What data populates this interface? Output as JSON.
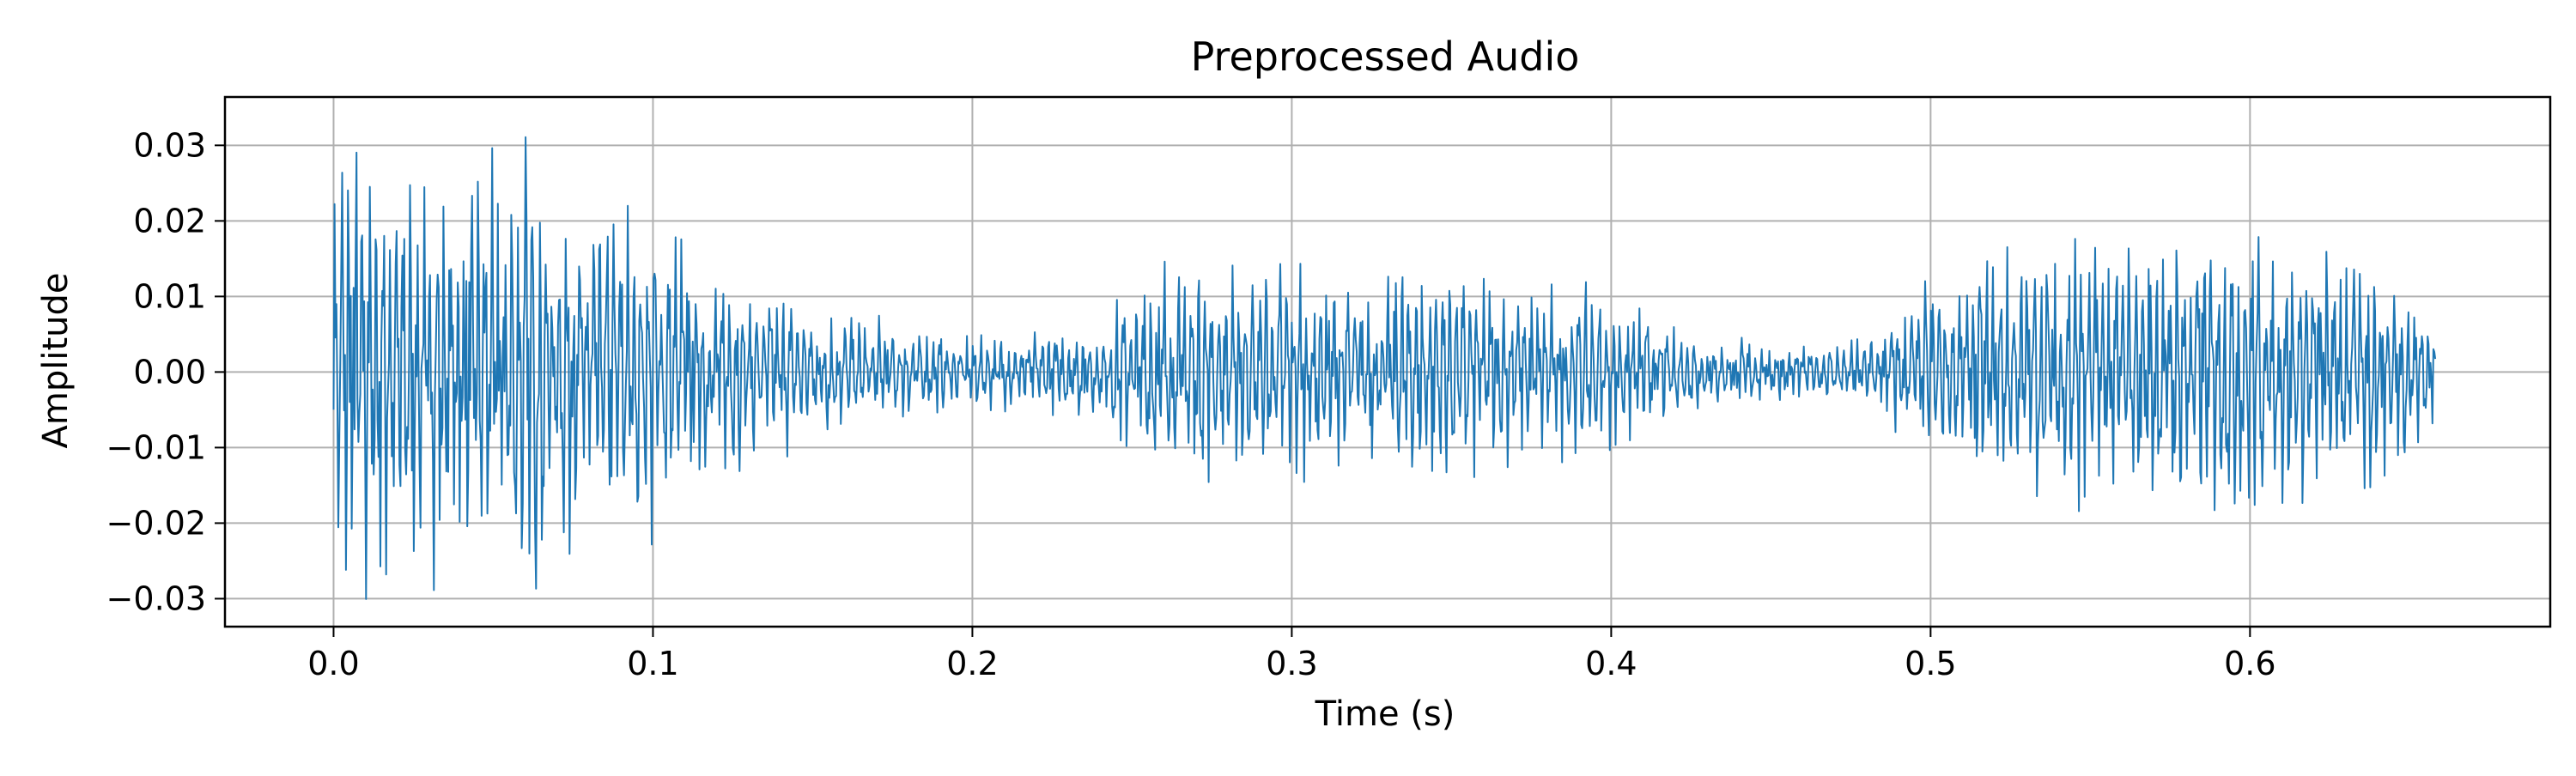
{
  "chart_data": {
    "type": "line",
    "title": "Preprocessed Audio",
    "xlabel": "Time (s)",
    "ylabel": "Amplitude",
    "xlim": [
      -0.034,
      0.694
    ],
    "ylim": [
      -0.0337,
      0.0364
    ],
    "xticks": [
      0.0,
      0.1,
      0.2,
      0.3,
      0.4,
      0.5,
      0.6
    ],
    "xtick_labels": [
      "0.0",
      "0.1",
      "0.2",
      "0.3",
      "0.4",
      "0.5",
      "0.6"
    ],
    "yticks": [
      0.03,
      0.02,
      0.01,
      0.0,
      -0.01,
      -0.02,
      -0.03
    ],
    "ytick_labels": [
      "0.03",
      "0.02",
      "0.01",
      "0.00",
      "−0.01",
      "−0.02",
      "−0.03"
    ],
    "grid": true,
    "line_color": "#1f77b4",
    "series": [
      {
        "x": [
          0.0,
          0.02,
          0.04,
          0.06,
          0.08,
          0.1,
          0.12,
          0.14,
          0.16,
          0.18,
          0.2,
          0.22,
          0.24,
          0.26,
          0.28,
          0.3,
          0.32,
          0.34,
          0.36,
          0.38,
          0.4,
          0.42,
          0.44,
          0.46,
          0.48,
          0.5,
          0.52,
          0.54,
          0.56,
          0.58,
          0.6,
          0.62,
          0.64,
          0.658
        ],
        "envelope": [
          0.031,
          0.022,
          0.023,
          0.027,
          0.017,
          0.02,
          0.012,
          0.009,
          0.007,
          0.005,
          0.004,
          0.0045,
          0.006,
          0.013,
          0.011,
          0.014,
          0.01,
          0.013,
          0.012,
          0.01,
          0.009,
          0.005,
          0.004,
          0.003,
          0.004,
          0.011,
          0.013,
          0.016,
          0.015,
          0.015,
          0.016,
          0.014,
          0.014,
          0.006
        ]
      }
    ]
  }
}
